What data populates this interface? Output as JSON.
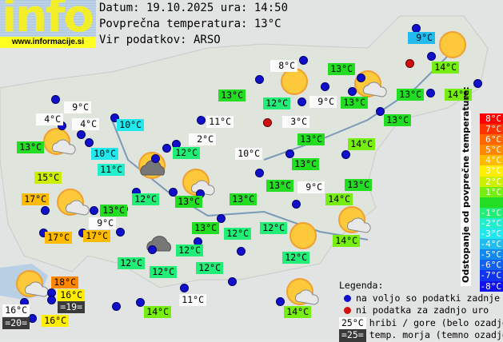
{
  "logo": {
    "word": "info",
    "url": "www.informacije.si"
  },
  "header": {
    "date_line": "Datum: 19.10.2025 ura: 14:50",
    "avg_line": "Povprečna temperatura: 13°C",
    "source_line": "Vir podatkov: ARSO"
  },
  "colors": {
    "dev_-4": "#22bbee",
    "dev_-3": "#22e8ee",
    "dev_-2": "#22eecc",
    "dev_-1": "#22ee77",
    "dev_0": "#22dd22",
    "dev_1": "#77ee11",
    "dev_2": "#ccee00",
    "dev_3": "#ffee00",
    "dev_4": "#ffbb00",
    "dev_5": "#ff8800",
    "station_available": "#1010cc",
    "station_missing": "#d01010"
  },
  "stations": [
    {
      "temp": "9°C",
      "style": "dev_-4"
    },
    {
      "temp": "8°C",
      "style": "white"
    },
    {
      "temp": "13°C",
      "style": "dev_0"
    },
    {
      "temp": "14°C",
      "style": "dev_1"
    },
    {
      "temp": "13°C",
      "style": "dev_0"
    },
    {
      "temp": "12°C",
      "style": "dev_-1"
    },
    {
      "temp": "9°C",
      "style": "white"
    },
    {
      "temp": "13°C",
      "style": "dev_0"
    },
    {
      "temp": "13°C",
      "style": "dev_0"
    },
    {
      "temp": "14°C",
      "style": "dev_1"
    },
    {
      "temp": "9°C",
      "style": "white"
    },
    {
      "temp": "4°C",
      "style": "white"
    },
    {
      "temp": "4°C",
      "style": "white"
    },
    {
      "temp": "10°C",
      "style": "dev_-3"
    },
    {
      "temp": "11°C",
      "style": "white"
    },
    {
      "temp": "3°C",
      "style": "white"
    },
    {
      "temp": "13°C",
      "style": "dev_0"
    },
    {
      "temp": "13°C",
      "style": "dev_0"
    },
    {
      "temp": "10°C",
      "style": "dev_-3"
    },
    {
      "temp": "2°C",
      "style": "white"
    },
    {
      "temp": "12°C",
      "style": "dev_-1"
    },
    {
      "temp": "13°C",
      "style": "dev_0"
    },
    {
      "temp": "14°C",
      "style": "dev_1"
    },
    {
      "temp": "10°C",
      "style": "white"
    },
    {
      "temp": "11°C",
      "style": "dev_-2"
    },
    {
      "temp": "13°C",
      "style": "dev_0"
    },
    {
      "temp": "15°C",
      "style": "dev_2"
    },
    {
      "temp": "13°C",
      "style": "dev_0"
    },
    {
      "temp": "9°C",
      "style": "white"
    },
    {
      "temp": "13°C",
      "style": "dev_0"
    },
    {
      "temp": "14°C",
      "style": "dev_1"
    },
    {
      "temp": "12°C",
      "style": "dev_-1"
    },
    {
      "temp": "13°C",
      "style": "dev_0"
    },
    {
      "temp": "13°C",
      "style": "dev_0"
    },
    {
      "temp": "17°C",
      "style": "dev_4"
    },
    {
      "temp": "13°C",
      "style": "dev_0"
    },
    {
      "temp": "9°C",
      "style": "white"
    },
    {
      "temp": "13°C",
      "style": "dev_0"
    },
    {
      "temp": "12°C",
      "style": "dev_-1"
    },
    {
      "temp": "12°C",
      "style": "dev_-1"
    },
    {
      "temp": "14°C",
      "style": "dev_1"
    },
    {
      "temp": "17°C",
      "style": "dev_4"
    },
    {
      "temp": "17°C",
      "style": "dev_4"
    },
    {
      "temp": "12°C",
      "style": "dev_-1"
    },
    {
      "temp": "12°C",
      "style": "dev_-1"
    },
    {
      "temp": "12°C",
      "style": "dev_-1"
    },
    {
      "temp": "12°C",
      "style": "dev_-1"
    },
    {
      "temp": "12°C",
      "style": "dev_-1"
    },
    {
      "temp": "18°C",
      "style": "dev_5"
    },
    {
      "temp": "16°C",
      "style": "dev_3"
    },
    {
      "temp": "=19=",
      "style": "dark"
    },
    {
      "temp": "16°C",
      "style": "white"
    },
    {
      "temp": "=20=",
      "style": "dark"
    },
    {
      "temp": "16°C",
      "style": "dev_3"
    },
    {
      "temp": "11°C",
      "style": "white"
    },
    {
      "temp": "14°C",
      "style": "dev_1"
    },
    {
      "temp": "14°C",
      "style": "dev_1"
    }
  ],
  "weather_icons": [
    "sun",
    "sun",
    "sun",
    "sun-cloud",
    "sun-cloud",
    "sun-cloud",
    "sun-cloud",
    "sun-cloud",
    "sun-cloud",
    "sun-cloud",
    "sun-dark-cloud",
    "dark-cloud"
  ],
  "scale": {
    "title": "Odstopanje od povprečne temperature:",
    "steps": [
      {
        "label": "8°C",
        "color": "#ff0000"
      },
      {
        "label": "7°C",
        "color": "#ff3300"
      },
      {
        "label": "6°C",
        "color": "#ff6600"
      },
      {
        "label": "5°C",
        "color": "#ff8800"
      },
      {
        "label": "4°C",
        "color": "#ffbb00"
      },
      {
        "label": "3°C",
        "color": "#ffee00"
      },
      {
        "label": "2°C",
        "color": "#ccee00"
      },
      {
        "label": "1°C",
        "color": "#77ee11"
      },
      {
        "label": "",
        "color": "#22dd22"
      },
      {
        "label": "-1°C",
        "color": "#22ee77"
      },
      {
        "label": "-2°C",
        "color": "#22eecc"
      },
      {
        "label": "-3°C",
        "color": "#22e8ee"
      },
      {
        "label": "-4°C",
        "color": "#22bbee"
      },
      {
        "label": "-5°C",
        "color": "#1188ee"
      },
      {
        "label": "-6°C",
        "color": "#1160ee"
      },
      {
        "label": "-7°C",
        "color": "#1133ee"
      },
      {
        "label": "-8°C",
        "color": "#1111ee"
      }
    ]
  },
  "legend": {
    "title": "Legenda:",
    "available": "na voljo so podatki zadnje ure",
    "missing": "ni podatka za zadnjo uro",
    "mountain_sample": "25°C",
    "mountain_text": "hribi / gore (belo ozadje)",
    "sea_sample": "=25=",
    "sea_text": "temp. morja (temno ozadje)"
  }
}
